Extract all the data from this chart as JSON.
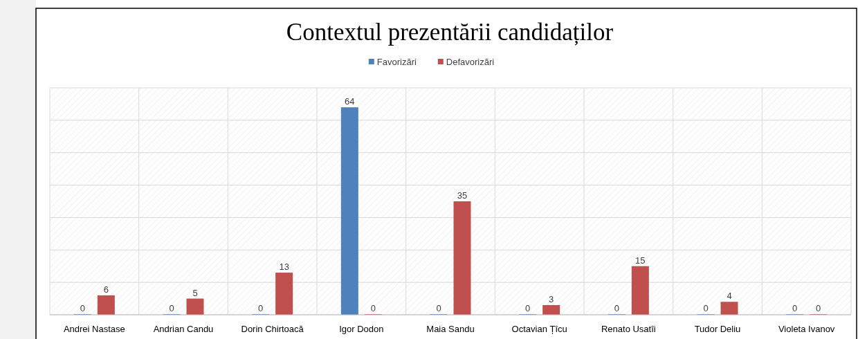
{
  "chart_data": {
    "type": "bar",
    "title": "Contextul prezentării candidaților",
    "categories": [
      "Andrei Nastase",
      "Andrian Candu",
      "Dorin Chirtoacă",
      "Igor Dodon",
      "Maia Sandu",
      "Octavian Țîcu",
      "Renato Usatîi",
      "Tudor Deliu",
      "Violeta Ivanov"
    ],
    "series": [
      {
        "name": "Favorizări",
        "color": "#4f81bd",
        "values": [
          0,
          0,
          0,
          64,
          0,
          0,
          0,
          0,
          0
        ]
      },
      {
        "name": "Defavorizări",
        "color": "#c0504d",
        "values": [
          6,
          5,
          13,
          0,
          35,
          3,
          15,
          4,
          0
        ]
      }
    ],
    "ylim": [
      0,
      70
    ],
    "yticks": [
      {
        "value": 0,
        "label": null
      },
      {
        "value": 10,
        "label": null
      },
      {
        "value": 20,
        "label": null
      },
      {
        "value": 30,
        "label": null
      },
      {
        "value": 40,
        "label": null
      },
      {
        "value": 50,
        "label": null
      },
      {
        "value": 60,
        "label": null
      },
      {
        "value": 70,
        "label": null
      }
    ],
    "tick_labels": "x",
    "grid": true,
    "legend": "top",
    "data_labels": true
  }
}
